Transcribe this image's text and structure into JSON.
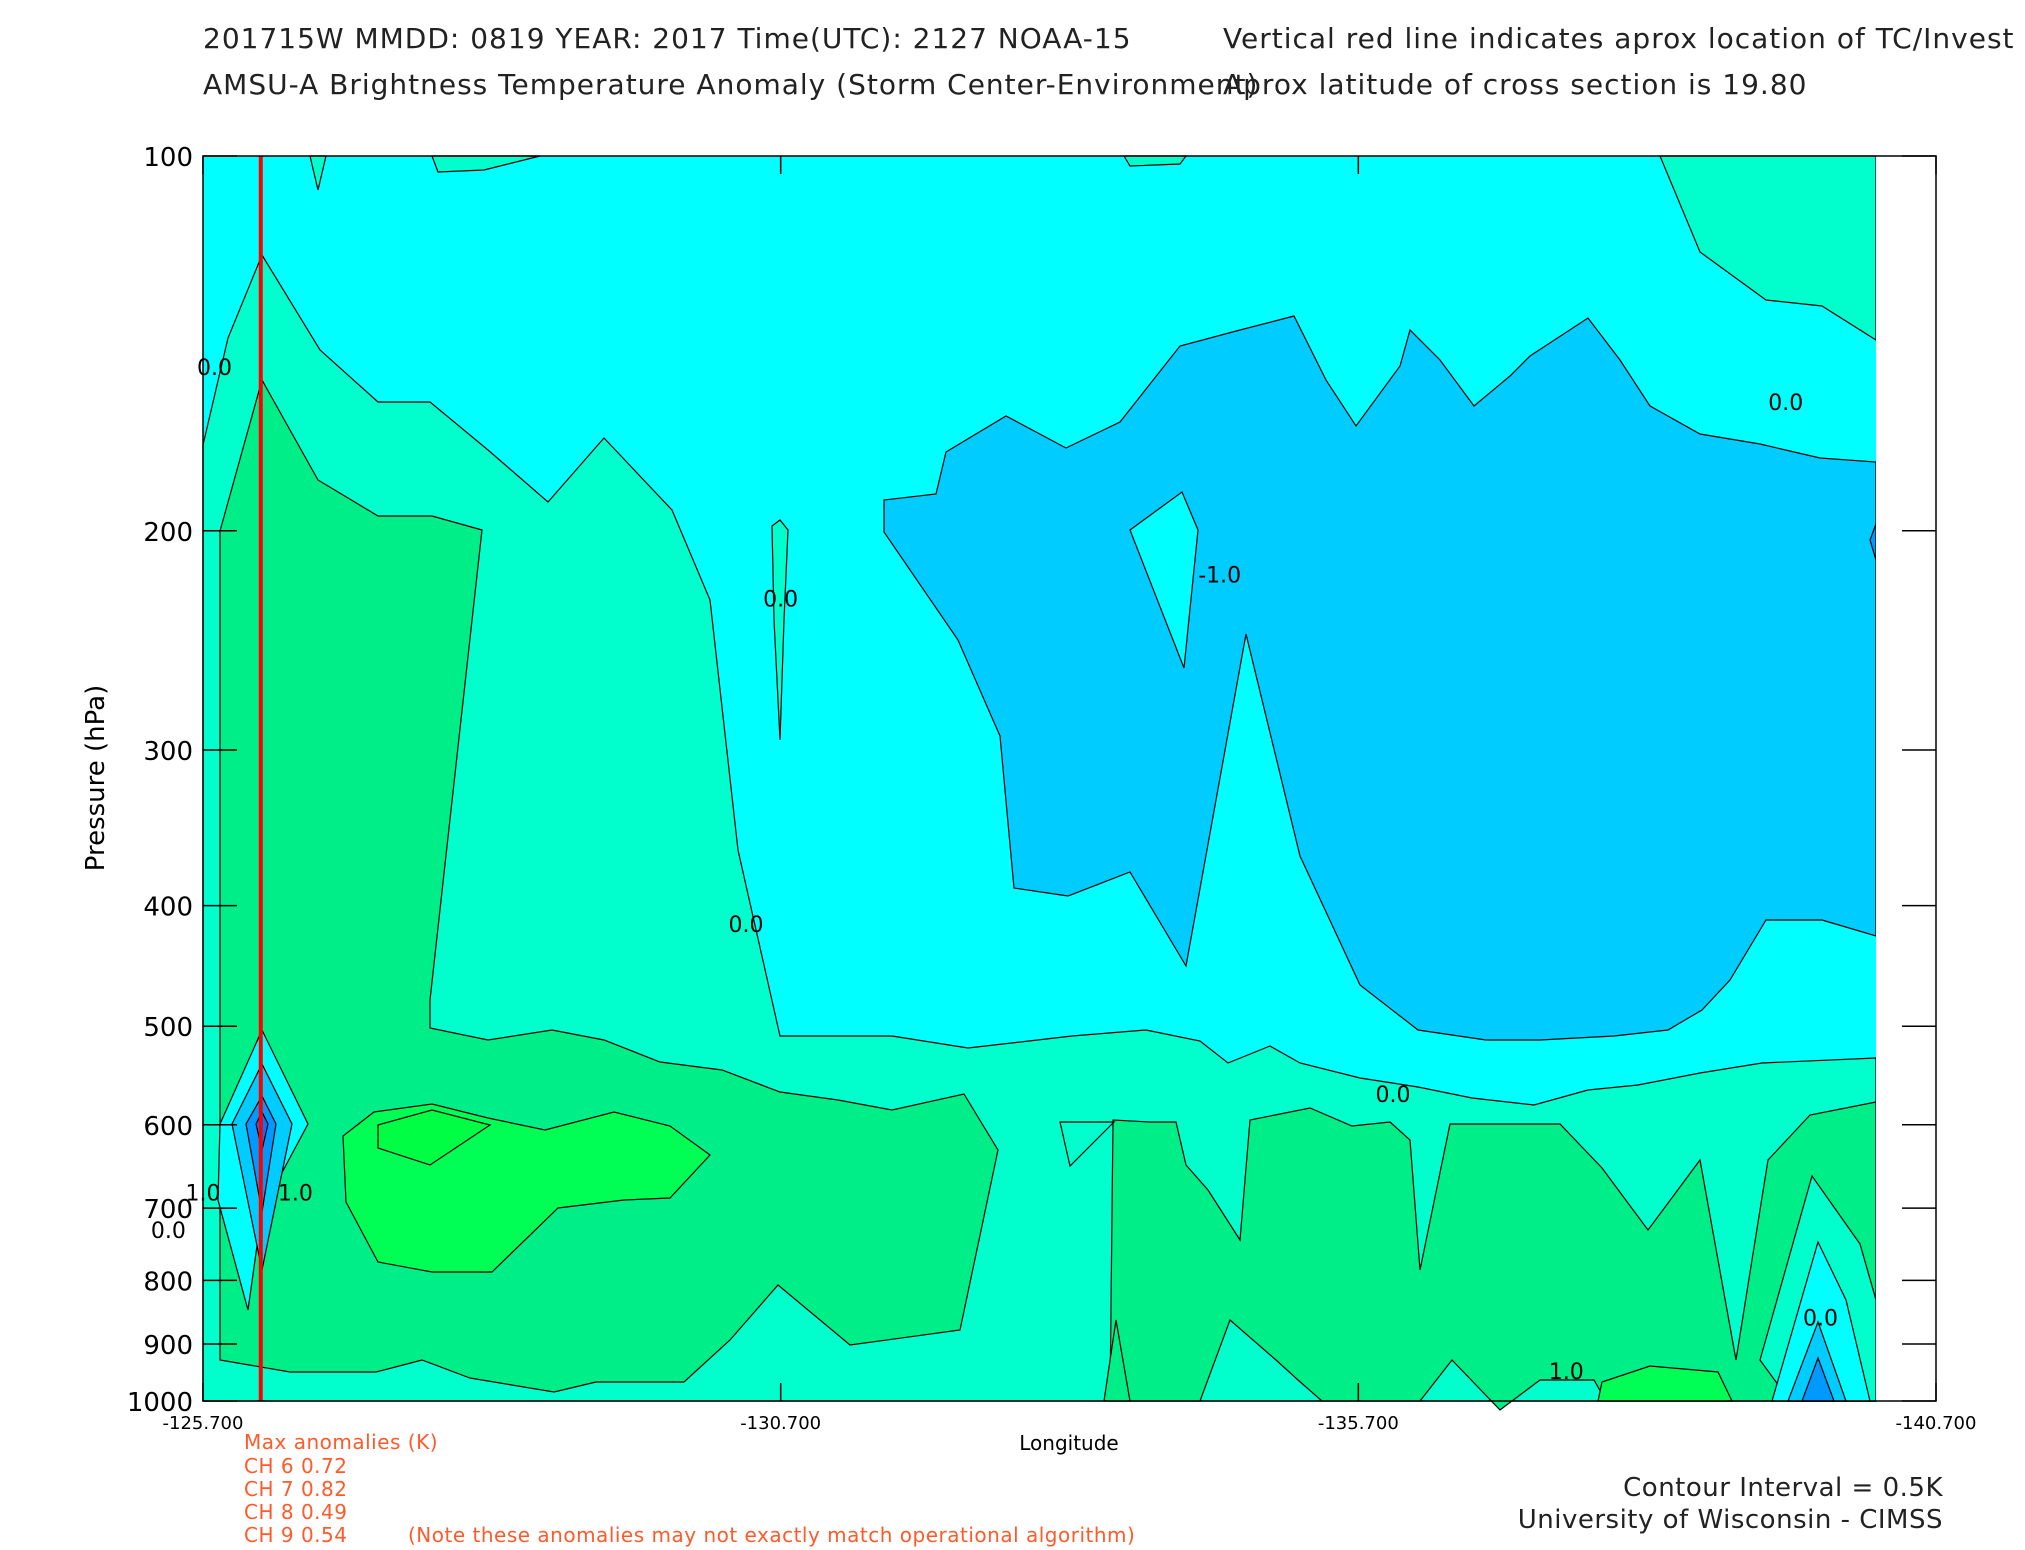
{
  "header": {
    "line1_left": "201715W  MMDD: 0819 YEAR: 2017 Time(UTC): 2127 NOAA-15",
    "line1_right": "Vertical red line indicates aprox location of TC/Invest",
    "line2_left": "AMSU-A Brightness Temperature Anomaly (Storm Center-Environment)",
    "line2_right": "Aprox latitude of cross section is 19.80"
  },
  "colors": {
    "warm_3": "#00ff55",
    "warm_2": "#00ee88",
    "warm_1": "#00ffcc",
    "neutral": "#00ffff",
    "cool_1": "#00ccff",
    "cool_2": "#0099ff",
    "storm_line": "#ff0000",
    "note_text": "#ff5a2a"
  },
  "chart_data": {
    "type": "contour",
    "xlabel": "Longitude",
    "ylabel": "Pressure (hPa)",
    "xlim": [
      -125.7,
      -140.7
    ],
    "x_ticks": [
      "-125.700",
      "-130.700",
      "-135.700",
      "-140.700"
    ],
    "y_ticks": [
      "100",
      "200",
      "300",
      "400",
      "500",
      "600",
      "700",
      "800",
      "900",
      "1000"
    ],
    "y_scale": "log",
    "storm_longitude": -126.2,
    "contour_interval_K": 0.5,
    "contour_labels": [
      {
        "text": "0.0",
        "lon": -125.8,
        "p": 150
      },
      {
        "text": "0.0",
        "lon": -130.7,
        "p": 230
      },
      {
        "text": "-1.0",
        "lon": -134.5,
        "p": 220
      },
      {
        "text": "0.0",
        "lon": -130.4,
        "p": 420
      },
      {
        "text": "0.0",
        "lon": -139.4,
        "p": 160
      },
      {
        "text": "0.0",
        "lon": -136.0,
        "p": 575
      },
      {
        "text": "1.0",
        "lon": -126.5,
        "p": 690
      },
      {
        "text": "1.0",
        "lon": -125.7,
        "p": 690
      },
      {
        "text": "0.0",
        "lon": -125.4,
        "p": 740
      },
      {
        "text": "1.0",
        "lon": -137.5,
        "p": 960
      },
      {
        "text": "0.0",
        "lon": -139.7,
        "p": 870
      }
    ]
  },
  "notes": {
    "title": "Max anomalies (K)",
    "channels": [
      "CH 6  0.72",
      "CH 7  0.82",
      "CH 8  0.49",
      "CH 9  0.54"
    ],
    "disclaimer": "(Note these anomalies may not exactly match operational algorithm)"
  },
  "footer": {
    "contour_interval": "Contour Interval = 0.5K",
    "institution": "University of Wisconsin - CIMSS"
  }
}
